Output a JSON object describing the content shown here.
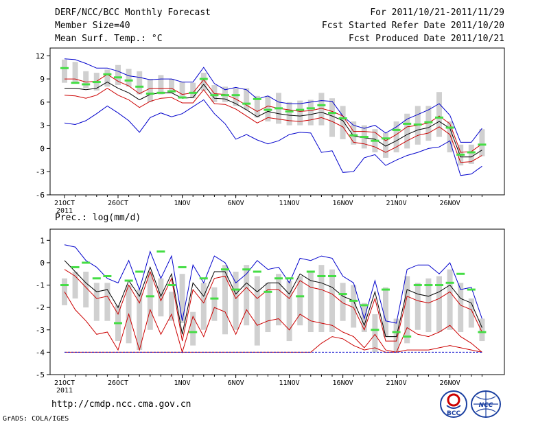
{
  "header": {
    "title": "DERF/NCC/BCC Monthly Forecast",
    "member_size": "Member Size=40",
    "variable": "Mean Surf. Temp.: °C",
    "for_range": "For 2011/10/21-2011/11/29",
    "started": "Fcst Started Refer Date 2011/10/20",
    "produced": "Fcst Produced Date 2011/10/21"
  },
  "footer": {
    "url": "http://cmdp.ncc.cma.gov.cn",
    "grads": "GrADS: COLA/IGES",
    "logo_bcc": "BCC",
    "logo_ncc": "NCC"
  },
  "colors": {
    "blue": "#0000cc",
    "red": "#cc0000",
    "black": "#000000",
    "green": "#44dd44",
    "gray": "#d0d0d0"
  },
  "chart_data": [
    {
      "type": "line",
      "title": "Mean Surf. Temp.: °C",
      "x_labels": [
        {
          "day": 0,
          "label": "21OCT",
          "sub": "2011"
        },
        {
          "day": 5,
          "label": "26OCT"
        },
        {
          "day": 11,
          "label": "1NOV"
        },
        {
          "day": 16,
          "label": "6NOV"
        },
        {
          "day": 21,
          "label": "11NOV"
        },
        {
          "day": 26,
          "label": "16NOV"
        },
        {
          "day": 31,
          "label": "21NOV"
        },
        {
          "day": 36,
          "label": "26NOV"
        }
      ],
      "ylim": [
        -6,
        13
      ],
      "yticks": [
        -6,
        -3,
        0,
        3,
        6,
        9,
        12
      ],
      "box_min": [
        8.5,
        8.5,
        7.8,
        7.5,
        8.0,
        8.2,
        8.0,
        7.0,
        6.0,
        7.0,
        7.2,
        6.5,
        6.5,
        7.5,
        6.0,
        6.0,
        5.5,
        5.0,
        4.0,
        3.5,
        3.2,
        3.0,
        3.0,
        3.0,
        3.0,
        1.5,
        1.2,
        0.5,
        0.0,
        -0.5,
        -1.2,
        -0.5,
        0.0,
        0.5,
        1.0,
        1.5,
        -0.5,
        -2.2,
        -2.0,
        -1.0
      ],
      "box_max": [
        11.5,
        11.2,
        10.0,
        9.8,
        10.2,
        10.8,
        10.3,
        10.0,
        9.0,
        9.5,
        9.0,
        8.6,
        8.5,
        9.8,
        8.2,
        8.0,
        7.8,
        7.8,
        6.8,
        6.8,
        7.2,
        6.0,
        6.2,
        6.3,
        7.2,
        6.5,
        5.5,
        3.5,
        3.0,
        2.5,
        2.0,
        3.5,
        4.5,
        5.5,
        5.5,
        7.3,
        3.5,
        0.5,
        0.5,
        2.5
      ],
      "series": [
        {
          "name": "upper-bound",
          "color": "blue",
          "values": [
            11.6,
            11.5,
            11.0,
            10.4,
            10.4,
            10.0,
            9.4,
            9.2,
            8.9,
            9.0,
            9.0,
            8.6,
            8.6,
            10.5,
            8.4,
            7.6,
            7.9,
            7.6,
            6.4,
            6.8,
            6.0,
            5.8,
            5.8,
            6.0,
            6.2,
            6.1,
            4.2,
            3.0,
            2.6,
            3.0,
            2.0,
            2.8,
            3.8,
            4.4,
            5.0,
            5.8,
            4.3,
            0.8,
            0.8,
            2.6
          ]
        },
        {
          "name": "upper-red",
          "color": "red",
          "values": [
            9.0,
            9.0,
            8.6,
            8.7,
            9.6,
            8.7,
            8.1,
            7.1,
            7.8,
            7.8,
            7.8,
            7.0,
            7.2,
            8.9,
            7.1,
            7.0,
            6.4,
            5.6,
            4.8,
            5.5,
            5.2,
            5.0,
            4.8,
            4.9,
            5.2,
            4.8,
            4.2,
            2.2,
            2.2,
            2.1,
            1.0,
            1.8,
            2.8,
            3.0,
            3.3,
            4.2,
            3.2,
            -0.5,
            -0.4,
            0.6
          ]
        },
        {
          "name": "mean",
          "color": "black",
          "values": [
            7.8,
            7.8,
            7.6,
            7.8,
            8.6,
            7.8,
            7.2,
            6.3,
            7.0,
            7.2,
            7.2,
            6.5,
            6.6,
            8.3,
            6.5,
            6.4,
            5.8,
            5.0,
            4.1,
            4.8,
            4.5,
            4.3,
            4.2,
            4.4,
            4.7,
            4.2,
            3.6,
            1.6,
            1.4,
            1.2,
            0.3,
            1.0,
            1.8,
            2.4,
            2.7,
            3.5,
            2.6,
            -1.1,
            -1.1,
            -0.2
          ]
        },
        {
          "name": "lower-red",
          "color": "red",
          "values": [
            6.9,
            6.8,
            6.5,
            6.9,
            7.8,
            6.9,
            6.3,
            5.3,
            6.1,
            6.5,
            6.6,
            5.9,
            5.9,
            7.6,
            5.8,
            5.7,
            5.1,
            4.2,
            3.3,
            4.0,
            3.8,
            3.6,
            3.5,
            3.7,
            4.0,
            3.5,
            2.8,
            0.8,
            0.6,
            0.2,
            -0.5,
            0.2,
            1.0,
            1.7,
            2.0,
            2.8,
            1.8,
            -1.8,
            -1.7,
            -0.9
          ]
        },
        {
          "name": "lower-bound",
          "color": "blue",
          "values": [
            3.3,
            3.1,
            3.6,
            4.5,
            5.5,
            4.6,
            3.6,
            2.1,
            4.0,
            4.6,
            4.1,
            4.5,
            5.4,
            6.3,
            4.5,
            3.2,
            1.2,
            1.8,
            1.1,
            0.6,
            1.0,
            1.8,
            2.1,
            2.0,
            -0.5,
            -0.3,
            -3.1,
            -3.0,
            -1.2,
            -0.8,
            -2.2,
            -1.5,
            -0.9,
            -0.5,
            0.0,
            0.2,
            1.0,
            -3.5,
            -3.3,
            -2.3
          ]
        },
        {
          "name": "observed-mark",
          "color": "green",
          "values": [
            10.4,
            8.5,
            8.3,
            8.6,
            9.6,
            9.2,
            8.8,
            8.0,
            7.1,
            7.2,
            7.4,
            6.6,
            7.2,
            9.0,
            6.9,
            6.9,
            6.9,
            5.8,
            6.4,
            5.0,
            5.2,
            4.8,
            5.0,
            5.2,
            5.6,
            4.6,
            3.9,
            1.7,
            1.5,
            1.0,
            1.3,
            2.4,
            3.2,
            3.1,
            3.4,
            4.0,
            2.7,
            -0.8,
            -0.5,
            0.5
          ]
        }
      ]
    },
    {
      "type": "line",
      "title": "Prec.: log(mm/d)",
      "x_labels": [
        {
          "day": 0,
          "label": "21OCT",
          "sub": "2011"
        },
        {
          "day": 5,
          "label": "26OCT"
        },
        {
          "day": 11,
          "label": "1NOV"
        },
        {
          "day": 16,
          "label": "6NOV"
        },
        {
          "day": 21,
          "label": "11NOV"
        },
        {
          "day": 26,
          "label": "16NOV"
        },
        {
          "day": 31,
          "label": "21NOV"
        },
        {
          "day": 36,
          "label": "26NOV"
        }
      ],
      "ylim": [
        -5,
        1.5
      ],
      "yticks": [
        -5,
        -4,
        -3,
        -2,
        -1,
        0,
        1
      ],
      "box_min": [
        -1.9,
        -1.6,
        -2.0,
        -2.6,
        -2.6,
        -3.5,
        -3.6,
        -3.9,
        -3.0,
        -2.4,
        -2.6,
        -2.7,
        -3.7,
        -3.0,
        -2.6,
        -3.2,
        -3.0,
        -2.8,
        -3.7,
        -3.1,
        -2.8,
        -3.5,
        -2.8,
        -3.1,
        -3.1,
        -3.1,
        -2.6,
        -2.9,
        -3.1,
        -4.0,
        -3.3,
        -4.0,
        -3.6,
        -3.0,
        -3.1,
        -3.1,
        -3.0,
        -3.1,
        -2.9,
        -3.5
      ],
      "box_max": [
        -0.7,
        -0.4,
        -0.4,
        -0.9,
        -0.9,
        -1.9,
        -1.0,
        -1.2,
        -0.4,
        -0.7,
        -1.3,
        -0.5,
        -2.2,
        -0.9,
        -1.1,
        -0.1,
        -0.4,
        -0.1,
        -0.6,
        -0.9,
        -0.5,
        -0.8,
        -0.6,
        -0.4,
        -0.1,
        -0.3,
        -0.9,
        -1.0,
        -1.8,
        -2.3,
        -1.1,
        -2.5,
        -0.6,
        -0.9,
        -0.7,
        -0.6,
        -0.3,
        -0.9,
        -1.6,
        -2.5
      ],
      "series": [
        {
          "name": "upper-bound",
          "color": "blue",
          "values": [
            0.8,
            0.7,
            0.1,
            -0.2,
            -0.7,
            -0.9,
            0.1,
            -1.2,
            0.5,
            -0.7,
            0.3,
            -2.6,
            -0.1,
            -0.9,
            0.3,
            0.0,
            -0.9,
            -0.5,
            0.1,
            -0.3,
            -0.2,
            -0.9,
            0.2,
            0.1,
            0.3,
            0.2,
            -0.6,
            -0.9,
            -2.5,
            -0.8,
            -2.6,
            -2.7,
            -0.3,
            -0.1,
            -0.1,
            -0.5,
            0.0,
            -1.2,
            -1.1,
            -2.5
          ]
        },
        {
          "name": "mean",
          "color": "black",
          "values": [
            0.1,
            -0.4,
            -0.9,
            -1.3,
            -1.2,
            -2.0,
            -0.8,
            -1.5,
            -0.2,
            -1.5,
            -0.5,
            -3.2,
            -0.9,
            -1.5,
            -0.4,
            -0.4,
            -1.4,
            -0.9,
            -1.3,
            -0.9,
            -0.9,
            -1.4,
            -0.5,
            -0.8,
            -0.9,
            -1.1,
            -1.5,
            -1.7,
            -2.8,
            -1.3,
            -3.3,
            -3.3,
            -1.2,
            -1.4,
            -1.5,
            -1.3,
            -1.0,
            -1.6,
            -1.8,
            -2.9
          ]
        },
        {
          "name": "upper-red",
          "color": "red",
          "values": [
            -0.3,
            -0.6,
            -1.1,
            -1.6,
            -1.5,
            -2.3,
            -1.0,
            -1.8,
            -0.4,
            -1.7,
            -0.7,
            -3.5,
            -1.2,
            -1.8,
            -0.7,
            -0.6,
            -1.6,
            -1.1,
            -1.6,
            -1.2,
            -1.2,
            -1.6,
            -0.8,
            -1.1,
            -1.2,
            -1.4,
            -1.8,
            -2.0,
            -3.0,
            -1.6,
            -3.5,
            -3.5,
            -1.5,
            -1.7,
            -1.8,
            -1.6,
            -1.3,
            -1.9,
            -2.1,
            -3.1
          ]
        },
        {
          "name": "middle-red",
          "color": "red",
          "values": [
            -1.3,
            -2.1,
            -2.6,
            -3.2,
            -3.1,
            -3.9,
            -2.3,
            -3.9,
            -2.1,
            -3.2,
            -2.3,
            -4.0,
            -2.4,
            -3.3,
            -2.0,
            -2.2,
            -3.2,
            -2.1,
            -2.8,
            -2.6,
            -2.5,
            -3.0,
            -2.3,
            -2.6,
            -2.7,
            -2.8,
            -3.1,
            -3.3,
            -3.8,
            -3.2,
            -3.9,
            -4.0,
            -2.9,
            -3.2,
            -3.3,
            -3.1,
            -2.8,
            -3.3,
            -3.6,
            -4.0
          ]
        },
        {
          "name": "lower-red",
          "color": "red",
          "values": [
            -4.0,
            -4.0,
            -4.0,
            -4.0,
            -4.0,
            -4.0,
            -4.0,
            -4.0,
            -4.0,
            -4.0,
            -4.0,
            -4.0,
            -4.0,
            -4.0,
            -4.0,
            -4.0,
            -4.0,
            -4.0,
            -4.0,
            -4.0,
            -4.0,
            -4.0,
            -4.0,
            -4.0,
            -3.6,
            -3.3,
            -3.4,
            -3.7,
            -3.9,
            -3.8,
            -4.0,
            -4.0,
            -3.9,
            -3.9,
            -3.9,
            -3.8,
            -3.7,
            -3.8,
            -3.9,
            -4.0
          ]
        },
        {
          "name": "lower-bound",
          "color": "blue",
          "values": [
            -4.0,
            -4.0,
            -4.0,
            -4.0,
            -4.0,
            -4.0,
            -4.0,
            -4.0,
            -4.0,
            -4.0,
            -4.0,
            -4.0,
            -4.0,
            -4.0,
            -4.0,
            -4.0,
            -4.0,
            -4.0,
            -4.0,
            -4.0,
            -4.0,
            -4.0,
            -4.0,
            -4.0,
            -4.0,
            -4.0,
            -4.0,
            -4.0,
            -4.0,
            -4.0,
            -4.0,
            -4.0,
            -4.0,
            -4.0,
            -4.0,
            -4.0,
            -4.0,
            -4.0,
            -4.0,
            -4.0
          ]
        },
        {
          "name": "observed-mark",
          "color": "green",
          "values": [
            -1.0,
            -0.2,
            0.0,
            -0.7,
            -0.6,
            -2.7,
            -0.8,
            -0.4,
            -1.5,
            0.5,
            -1.0,
            -0.2,
            -3.1,
            -0.7,
            -1.6,
            -0.3,
            -1.2,
            -0.3,
            -0.4,
            -1.3,
            -0.7,
            -0.7,
            -1.5,
            -0.4,
            -0.6,
            -0.6,
            -1.4,
            -1.7,
            -1.9,
            -3.0,
            -1.2,
            -3.1,
            -3.3,
            -1.0,
            -1.0,
            -1.0,
            -0.9,
            -0.5,
            -1.2,
            -3.1
          ]
        }
      ]
    }
  ]
}
